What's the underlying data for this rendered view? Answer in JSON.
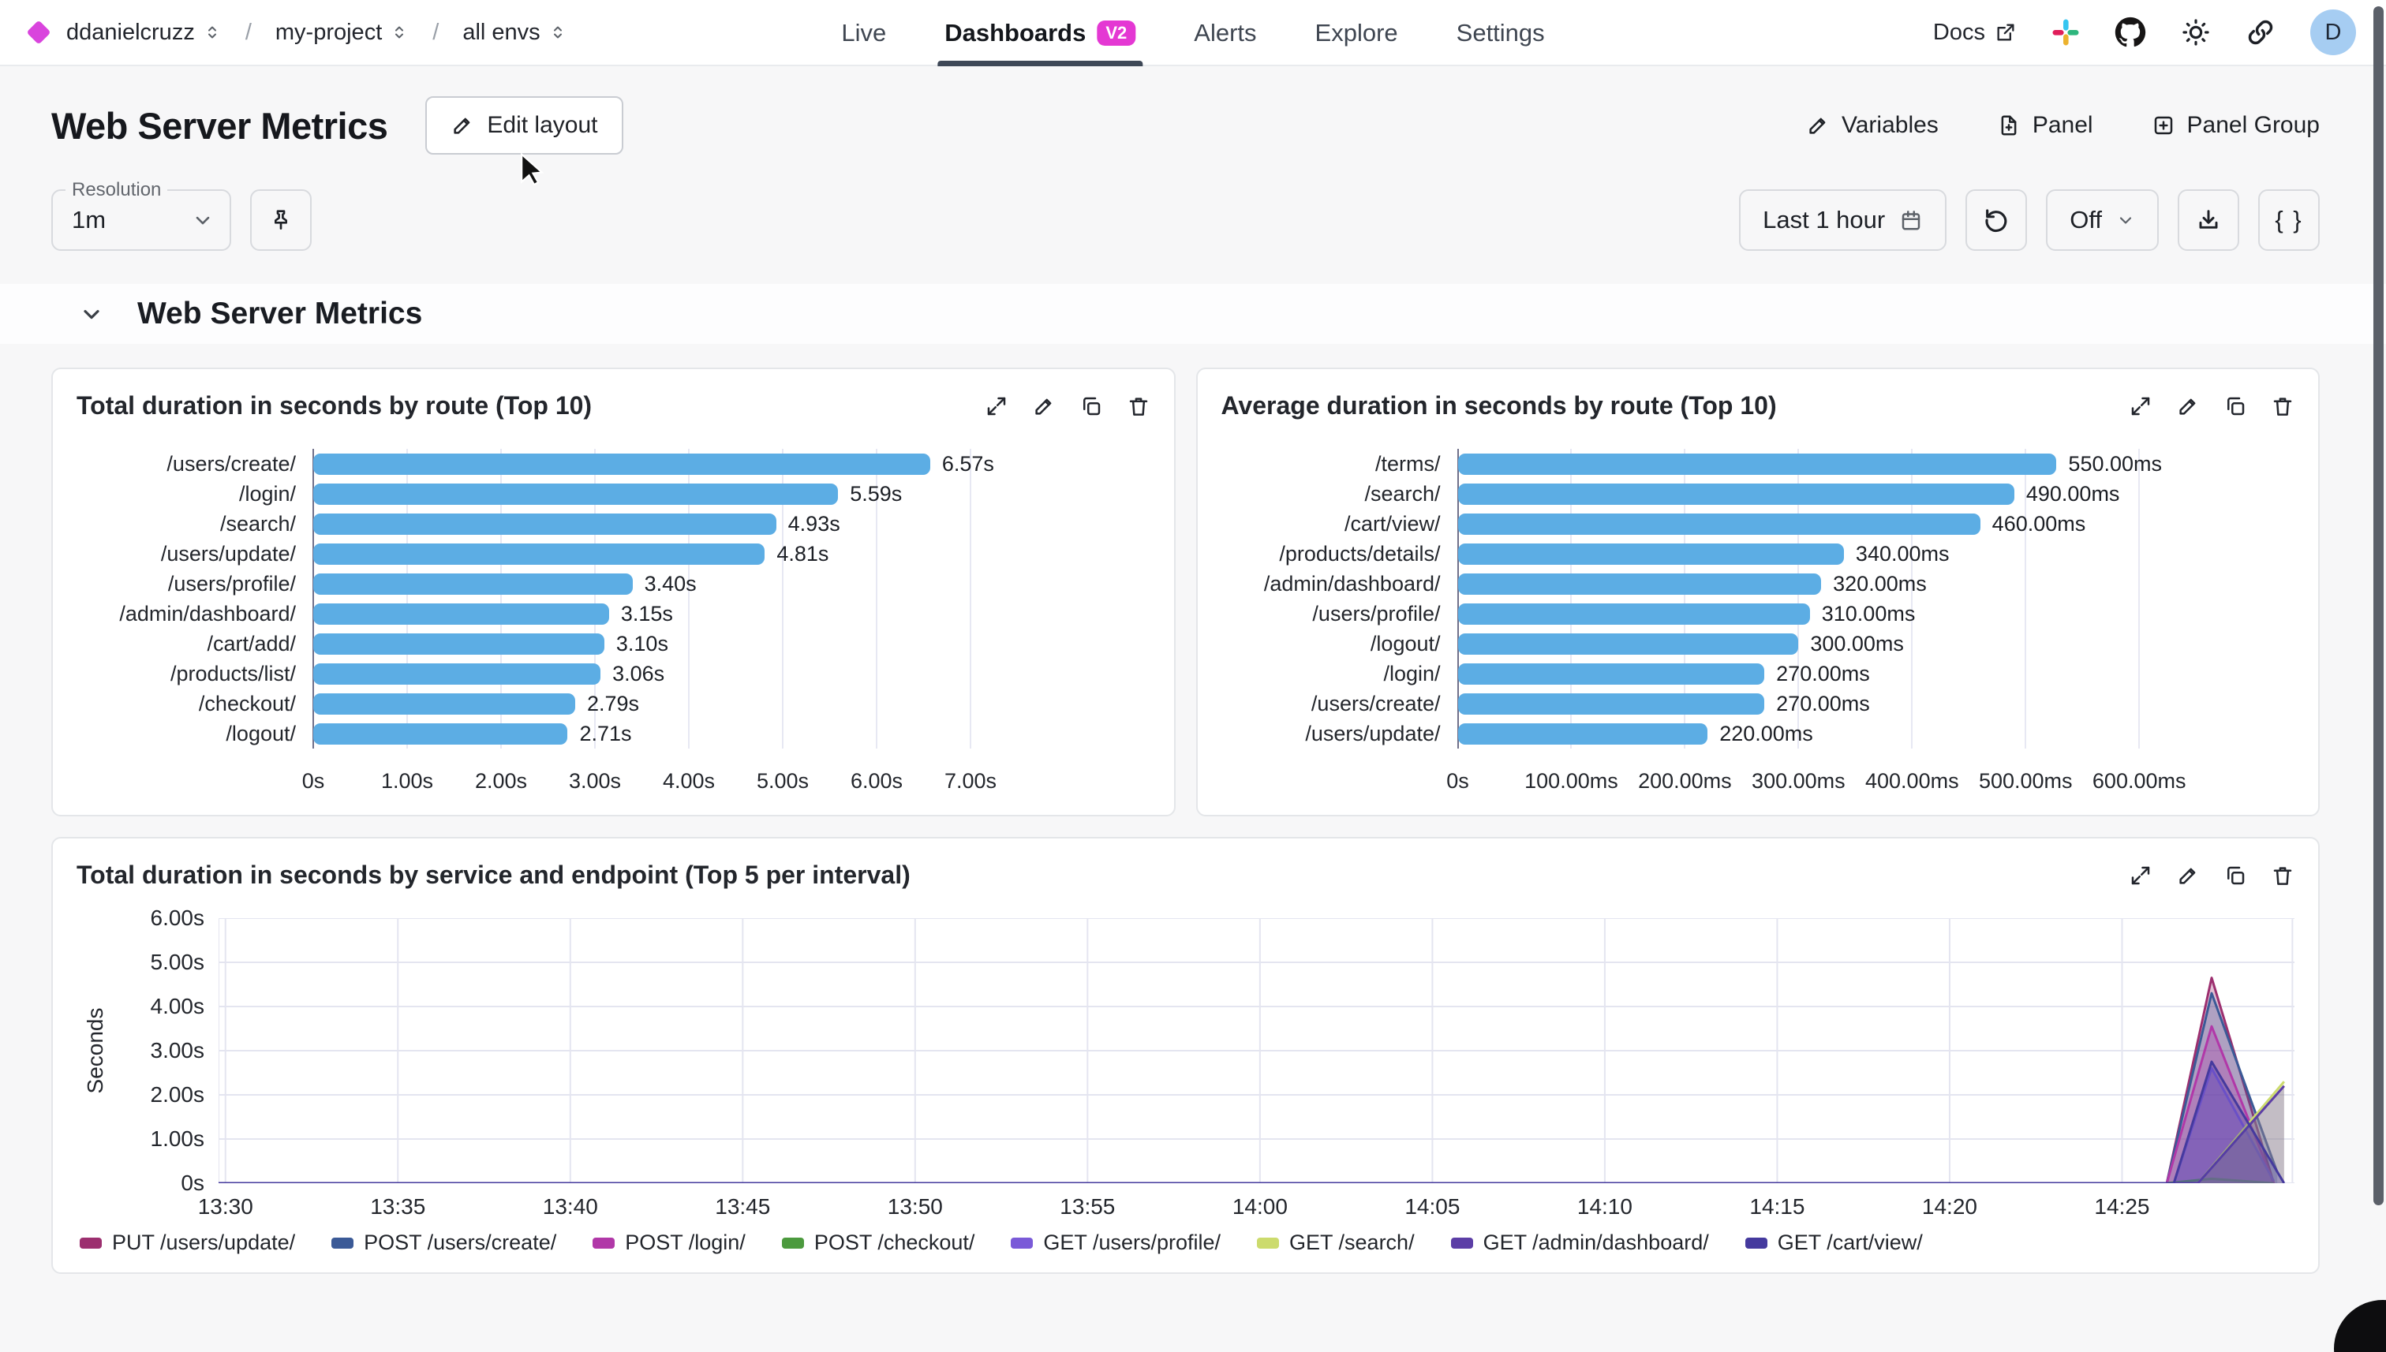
{
  "nav": {
    "breadcrumb": {
      "org": "ddanielcruzz",
      "sep": "/",
      "project": "my-project",
      "env": "all envs"
    },
    "tabs": [
      {
        "label": "Live",
        "active": false
      },
      {
        "label": "Dashboards",
        "badge": "V2",
        "active": true
      },
      {
        "label": "Alerts",
        "active": false
      },
      {
        "label": "Explore",
        "active": false
      },
      {
        "label": "Settings",
        "active": false
      }
    ],
    "docs_label": "Docs",
    "avatar_initial": "D"
  },
  "header": {
    "title": "Web Server Metrics",
    "edit_layout_label": "Edit layout",
    "variables_label": "Variables",
    "panel_label": "Panel",
    "panel_group_label": "Panel Group"
  },
  "toolbar": {
    "resolution_label": "Resolution",
    "resolution_value": "1m",
    "time_range_label": "Last 1 hour",
    "auto_refresh_value": "Off",
    "braces_label": "{ }"
  },
  "section": {
    "title": "Web Server Metrics"
  },
  "colors": {
    "bar": "#5cade4",
    "badge": "#e438d3",
    "brand_diamond": "#d944dd",
    "avatar_bg": "#a6cdf2"
  },
  "chart_data": [
    {
      "type": "bar",
      "orientation": "horizontal",
      "title": "Total duration in seconds by route (Top 10)",
      "categories": [
        "/users/create/",
        "/login/",
        "/search/",
        "/users/update/",
        "/users/profile/",
        "/admin/dashboard/",
        "/cart/add/",
        "/products/list/",
        "/checkout/",
        "/logout/"
      ],
      "values": [
        6.57,
        5.59,
        4.93,
        4.81,
        3.4,
        3.15,
        3.1,
        3.06,
        2.79,
        2.71
      ],
      "value_labels": [
        "6.57s",
        "5.59s",
        "4.93s",
        "4.81s",
        "3.40s",
        "3.15s",
        "3.10s",
        "3.06s",
        "2.79s",
        "2.71s"
      ],
      "x_ticks": [
        "0s",
        "1.00s",
        "2.00s",
        "3.00s",
        "4.00s",
        "5.00s",
        "6.00s",
        "7.00s"
      ],
      "tick_values": [
        0,
        1,
        2,
        3,
        4,
        5,
        6,
        7
      ],
      "axis_max": 7.5,
      "unit": "s",
      "bar_color": "#5cade4"
    },
    {
      "type": "bar",
      "orientation": "horizontal",
      "title": "Average duration in seconds by route (Top 10)",
      "categories": [
        "/terms/",
        "/search/",
        "/cart/view/",
        "/products/details/",
        "/admin/dashboard/",
        "/users/profile/",
        "/logout/",
        "/login/",
        "/users/create/",
        "/users/update/"
      ],
      "values": [
        550,
        490,
        460,
        340,
        320,
        310,
        300,
        270,
        270,
        220
      ],
      "value_labels": [
        "550.00ms",
        "490.00ms",
        "460.00ms",
        "340.00ms",
        "320.00ms",
        "310.00ms",
        "300.00ms",
        "270.00ms",
        "270.00ms",
        "220.00ms"
      ],
      "x_ticks": [
        "0s",
        "100.00ms",
        "200.00ms",
        "300.00ms",
        "400.00ms",
        "500.00ms",
        "600.00ms"
      ],
      "tick_values": [
        0,
        100,
        200,
        300,
        400,
        500,
        600
      ],
      "axis_max": 620,
      "unit": "ms",
      "bar_color": "#5cade4"
    },
    {
      "type": "area",
      "title": "Total duration in seconds by service and endpoint (Top 5 per interval)",
      "ylabel": "Seconds",
      "y_ticks": [
        "0s",
        "1.00s",
        "2.00s",
        "3.00s",
        "4.00s",
        "5.00s",
        "6.00s"
      ],
      "y_tick_values": [
        0,
        1,
        2,
        3,
        4,
        5,
        6
      ],
      "ylim": [
        0,
        6
      ],
      "x_ticks": [
        "13:30",
        "13:35",
        "13:40",
        "13:45",
        "13:50",
        "13:55",
        "14:00",
        "14:05",
        "14:10",
        "14:15",
        "14:20",
        "14:25"
      ],
      "x_tick_minutes": [
        0,
        5,
        10,
        15,
        20,
        25,
        30,
        35,
        40,
        45,
        50,
        55
      ],
      "x_domain_minutes": [
        -0.2,
        60
      ],
      "grid": true,
      "legend_position": "bottom",
      "series": [
        {
          "name": "PUT /users/update/",
          "color": "#9c2f6f",
          "points": [
            [
              -0.2,
              0
            ],
            [
              56.3,
              0
            ],
            [
              57.6,
              4.65
            ],
            [
              59.4,
              0
            ]
          ]
        },
        {
          "name": "POST /users/create/",
          "color": "#3b5a97",
          "points": [
            [
              -0.2,
              0
            ],
            [
              56.3,
              0
            ],
            [
              57.6,
              4.3
            ],
            [
              59.5,
              0.25
            ]
          ]
        },
        {
          "name": "POST /login/",
          "color": "#b138a8",
          "points": [
            [
              -0.2,
              0
            ],
            [
              56.3,
              0
            ],
            [
              57.6,
              3.55
            ],
            [
              59.4,
              0
            ]
          ]
        },
        {
          "name": "POST /checkout/",
          "color": "#4c9a3e",
          "points": [
            [
              -0.2,
              0
            ],
            [
              56.3,
              0
            ],
            [
              57.6,
              0.1
            ],
            [
              59.4,
              0
            ]
          ]
        },
        {
          "name": "GET /users/profile/",
          "color": "#7a5ad8",
          "points": [
            [
              -0.2,
              0
            ],
            [
              56.5,
              0
            ],
            [
              57.6,
              2.6
            ],
            [
              59.4,
              0.05
            ]
          ]
        },
        {
          "name": "GET /search/",
          "color": "#ccdb6d",
          "points": [
            [
              -0.2,
              0
            ],
            [
              57.2,
              0
            ],
            [
              59.7,
              2.3
            ]
          ]
        },
        {
          "name": "GET /admin/dashboard/",
          "color": "#5c3ea6",
          "points": [
            [
              -0.2,
              0
            ],
            [
              57.2,
              0
            ],
            [
              59.7,
              2.2
            ]
          ]
        },
        {
          "name": "GET /cart/view/",
          "color": "#453a9e",
          "points": [
            [
              -0.2,
              0
            ],
            [
              56.5,
              0
            ],
            [
              57.6,
              2.75
            ],
            [
              59.7,
              0
            ]
          ]
        }
      ]
    }
  ]
}
